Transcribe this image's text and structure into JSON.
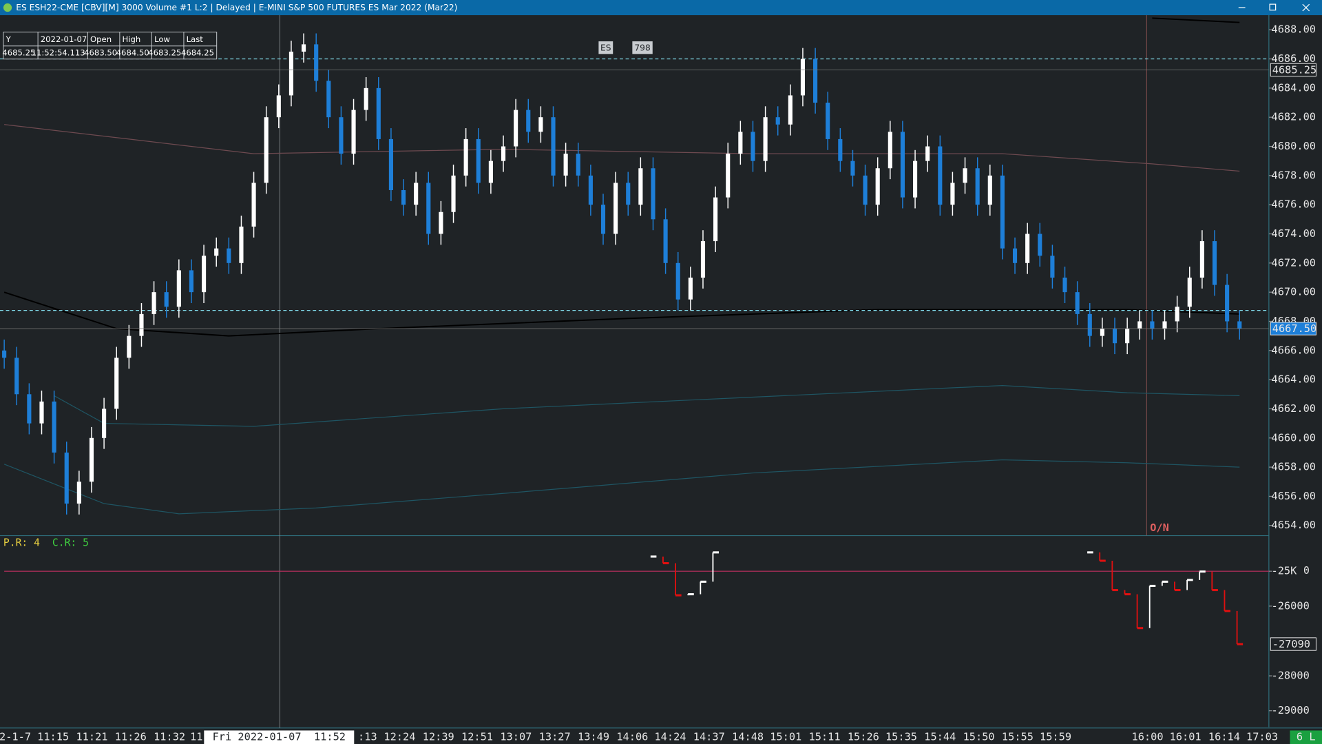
{
  "window": {
    "title": "ES ESH22-CME [CBV][M]  3000 Volume  #1 L:2 | Delayed | E-MINI S&P 500 FUTURES ES Mar 2022 (Mar22)"
  },
  "info_box": {
    "headers": [
      "Y",
      "2022-01-07",
      "Open",
      "High",
      "Low",
      "Last"
    ],
    "values": [
      "4685.25",
      "11:52:54.113",
      "4683.50",
      "4684.50",
      "4683.25",
      "4684.25"
    ]
  },
  "top_labels": [
    "ES",
    "798"
  ],
  "session_label": "O/N",
  "x_axis": {
    "labels": [
      "2-1-7",
      "11:15",
      "11:21",
      "11:26",
      "11:32",
      "11",
      ":13",
      "12:24",
      "12:39",
      "12:51",
      "13:07",
      "13:27",
      "13:49",
      "14:06",
      "14:24",
      "14:37",
      "14:48",
      "15:01",
      "15:11",
      "15:26",
      "15:35",
      "15:44",
      "15:50",
      "15:55",
      "15:59",
      "16:00",
      "16:01",
      "16:14",
      "17:03"
    ],
    "crosshair_label": "Fri 2022-01-07  11:52",
    "status": "6 L"
  },
  "chart_data": [
    {
      "type": "candlestick",
      "up_color": "#ffffff",
      "down_color": "#1e7fd8",
      "ylim": [
        4653.3,
        4689
      ],
      "yticks": [
        {
          "value": 4654,
          "label": "4654.00"
        },
        {
          "value": 4656,
          "label": "4656.00"
        },
        {
          "value": 4658,
          "label": "4658.00"
        },
        {
          "value": 4660,
          "label": "4660.00"
        },
        {
          "value": 4662,
          "label": "4662.00"
        },
        {
          "value": 4664,
          "label": "4664.00"
        },
        {
          "value": 4666,
          "label": "4666.00"
        },
        {
          "value": 4668,
          "label": "4668.00"
        },
        {
          "value": 4670,
          "label": "4670.00"
        },
        {
          "value": 4672,
          "label": "4672.00"
        },
        {
          "value": 4674,
          "label": "4674.00"
        },
        {
          "value": 4676,
          "label": "4676.00"
        },
        {
          "value": 4678,
          "label": "4678.00"
        },
        {
          "value": 4680,
          "label": "4680.00"
        },
        {
          "value": 4682,
          "label": "4682.00"
        },
        {
          "value": 4684,
          "label": "4684.00"
        },
        {
          "value": 4686,
          "label": "4686.00"
        },
        {
          "value": 4688,
          "label": "4688.00"
        }
      ],
      "open": [
        4666,
        4665.5,
        4663,
        4661,
        4662.5,
        4659,
        4655.5,
        4657,
        4660,
        4662,
        4665.5,
        4667,
        4668.5,
        4670,
        4669,
        4671.5,
        4670,
        4672.5,
        4673,
        4672,
        4674.5,
        4677.5,
        4682,
        4683.5,
        4686.5,
        4687,
        4684.5,
        4682,
        4679.5,
        4682.5,
        4684,
        4680.5,
        4677,
        4676,
        4677.5,
        4674,
        4675.5,
        4678,
        4680.5,
        4677.5,
        4679,
        4680,
        4682.5,
        4681,
        4682,
        4678,
        4679.5,
        4678,
        4676,
        4674,
        4677.5,
        4676,
        4678.5,
        4675,
        4672,
        4669.5,
        4671,
        4673.5,
        4676.5,
        4679.5,
        4681,
        4679,
        4682,
        4681.5,
        4683.5,
        4686,
        4683,
        4680.5,
        4679,
        4678,
        4676,
        4678.5,
        4681,
        4676.5,
        4679,
        4680,
        4676,
        4677.5,
        4678.5,
        4676,
        4678,
        4673,
        4672,
        4674,
        4672.5,
        4671,
        4670,
        4668.5,
        4667,
        4667.5,
        4666.5,
        4667.5,
        4668,
        4667.5,
        4668,
        4669,
        4671,
        4673.5,
        4670.5,
        4668
      ],
      "high": [
        4666.75,
        4666.25,
        4663.75,
        4663.25,
        4663.25,
        4659.75,
        4657.75,
        4660.75,
        4662.75,
        4666.25,
        4667.75,
        4669.25,
        4670.75,
        4670.75,
        4672.25,
        4672.25,
        4673.25,
        4673.75,
        4673.75,
        4675.25,
        4678.25,
        4682.75,
        4684.25,
        4687.25,
        4687.75,
        4687.75,
        4685.25,
        4682.75,
        4683.25,
        4684.75,
        4684.75,
        4681.25,
        4677.75,
        4678.25,
        4678.25,
        4676.25,
        4678.75,
        4681.25,
        4681.25,
        4679.75,
        4680.75,
        4683.25,
        4683.25,
        4682.75,
        4682.75,
        4680.25,
        4680.25,
        4678.75,
        4676.75,
        4678.25,
        4678.25,
        4679.25,
        4679.25,
        4675.75,
        4672.75,
        4671.75,
        4674.25,
        4677.25,
        4680.25,
        4681.75,
        4681.75,
        4682.75,
        4682.75,
        4684.25,
        4686.75,
        4686.75,
        4683.75,
        4681.25,
        4679.75,
        4678.75,
        4679.25,
        4681.75,
        4681.75,
        4679.75,
        4680.75,
        4680.75,
        4678.25,
        4679.25,
        4679.25,
        4678.75,
        4678.75,
        4673.75,
        4674.75,
        4674.75,
        4673.25,
        4671.75,
        4670.75,
        4669.25,
        4668.25,
        4668.25,
        4668.25,
        4668.75,
        4668.75,
        4668.75,
        4669.75,
        4671.75,
        4674.25,
        4674.25,
        4671.25,
        4668.75
      ],
      "low": [
        4664.75,
        4662.25,
        4660.25,
        4660.25,
        4658.25,
        4654.75,
        4654.75,
        4656.25,
        4659.25,
        4661.25,
        4664.75,
        4666.25,
        4667.75,
        4668.25,
        4668.25,
        4669.25,
        4669.25,
        4671.75,
        4671.25,
        4671.25,
        4673.75,
        4676.75,
        4681.25,
        4682.75,
        4685.75,
        4683.75,
        4681.25,
        4678.75,
        4678.75,
        4681.75,
        4679.75,
        4676.25,
        4675.25,
        4675.25,
        4673.25,
        4673.25,
        4674.75,
        4677.25,
        4676.75,
        4676.75,
        4678.25,
        4679.25,
        4680.25,
        4680.25,
        4677.25,
        4677.25,
        4677.25,
        4675.25,
        4673.25,
        4673.25,
        4675.25,
        4675.25,
        4674.25,
        4671.25,
        4668.75,
        4668.75,
        4670.25,
        4672.75,
        4675.75,
        4678.75,
        4678.25,
        4678.25,
        4680.75,
        4680.75,
        4682.75,
        4682.25,
        4679.75,
        4678.25,
        4677.25,
        4675.25,
        4675.25,
        4677.75,
        4675.75,
        4675.75,
        4678.25,
        4675.25,
        4675.25,
        4676.75,
        4675.25,
        4675.25,
        4672.25,
        4671.25,
        4671.25,
        4671.75,
        4670.25,
        4669.25,
        4667.75,
        4666.25,
        4666.25,
        4665.75,
        4665.75,
        4666.75,
        4666.75,
        4666.75,
        4667.25,
        4668.25,
        4670.25,
        4669.75,
        4667.25,
        4666.75
      ],
      "close": [
        4665.5,
        4663,
        4661,
        4662.5,
        4659,
        4655.5,
        4657,
        4660,
        4662,
        4665.5,
        4667,
        4668.5,
        4670,
        4669,
        4671.5,
        4670,
        4672.5,
        4673,
        4672,
        4674.5,
        4677.5,
        4682,
        4683.5,
        4686.5,
        4687,
        4684.5,
        4682,
        4679.5,
        4682.5,
        4684,
        4680.5,
        4677,
        4676,
        4677.5,
        4674,
        4675.5,
        4678,
        4680.5,
        4677.5,
        4679,
        4680,
        4682.5,
        4681,
        4682,
        4678,
        4679.5,
        4678,
        4676,
        4674,
        4677.5,
        4676,
        4678.5,
        4675,
        4672,
        4669.5,
        4671,
        4673.5,
        4676.5,
        4679.5,
        4681,
        4679,
        4682,
        4681.5,
        4683.5,
        4686,
        4683,
        4680.5,
        4679,
        4678,
        4676,
        4678.5,
        4681,
        4676.5,
        4679,
        4680,
        4676,
        4677.5,
        4678.5,
        4676,
        4678,
        4673,
        4672,
        4674,
        4672.5,
        4671,
        4670,
        4668.5,
        4667,
        4667.5,
        4666.5,
        4667.5,
        4668,
        4667.5,
        4668,
        4669,
        4671,
        4673.5,
        4670.5,
        4668,
        4667.5
      ],
      "lines": [
        {
          "color": "#000000",
          "x": [
            0,
            9,
            18,
            30,
            50,
            70,
            90,
            99
          ],
          "values": [
            4670,
            4667.5,
            4667,
            4667.5,
            4668.2,
            4668.8,
            4668.8,
            4668.5
          ]
        },
        {
          "color": "#000000",
          "x": [
            92,
            99
          ],
          "values": [
            4688.8,
            4688.5
          ]
        },
        {
          "color": "#6e4a50",
          "x": [
            0,
            10,
            20,
            40,
            60,
            80,
            92,
            99
          ],
          "values": [
            4681.5,
            4680.5,
            4679.5,
            4679.8,
            4679.5,
            4679.5,
            4678.8,
            4678.3
          ]
        },
        {
          "color": "#1f5563",
          "x": [
            4,
            8,
            20,
            40,
            60,
            80,
            90,
            99
          ],
          "values": [
            4662.9,
            4661,
            4660.8,
            4662,
            4662.8,
            4663.6,
            4663.1,
            4662.9
          ]
        },
        {
          "color": "#1f5563",
          "x": [
            0,
            8,
            14,
            25,
            40,
            60,
            80,
            90,
            99
          ],
          "values": [
            4658.2,
            4655.5,
            4654.8,
            4655.2,
            4656.2,
            4657.6,
            4658.5,
            4658.3,
            4658
          ]
        }
      ],
      "reference_lines": [
        4686,
        4668.75
      ],
      "price_markers": [
        {
          "value": 4685.25,
          "label": "4685.25"
        },
        {
          "value": 4667.5,
          "label": "4667.50"
        }
      ]
    },
    {
      "type": "line",
      "labels": [
        "P.R: 4",
        "C.R: 5"
      ],
      "zero_label": "0",
      "up_color": "#ffffff",
      "down_color": "#e01010",
      "ylim": [
        -29470,
        -23980
      ],
      "yticks": [
        {
          "value": -25000,
          "label": "-25K"
        },
        -26000,
        -28000,
        -29000
      ],
      "series": [
        {
          "x": [
            52,
            53,
            54,
            55,
            56,
            57
          ],
          "values": [
            -24580,
            -24770,
            -25690,
            -25660,
            -25300,
            -24460
          ]
        },
        {
          "x": [
            87,
            88,
            89,
            90,
            91,
            92,
            93,
            94,
            95,
            96,
            97,
            98,
            99
          ],
          "values": [
            -24460,
            -24700,
            -25540,
            -25660,
            -26630,
            -25420,
            -25300,
            -25540,
            -25250,
            -25010,
            -25540,
            -26140,
            -27090
          ]
        }
      ],
      "price_markers": [
        {
          "value": -27090,
          "label": "-27090"
        }
      ]
    }
  ]
}
